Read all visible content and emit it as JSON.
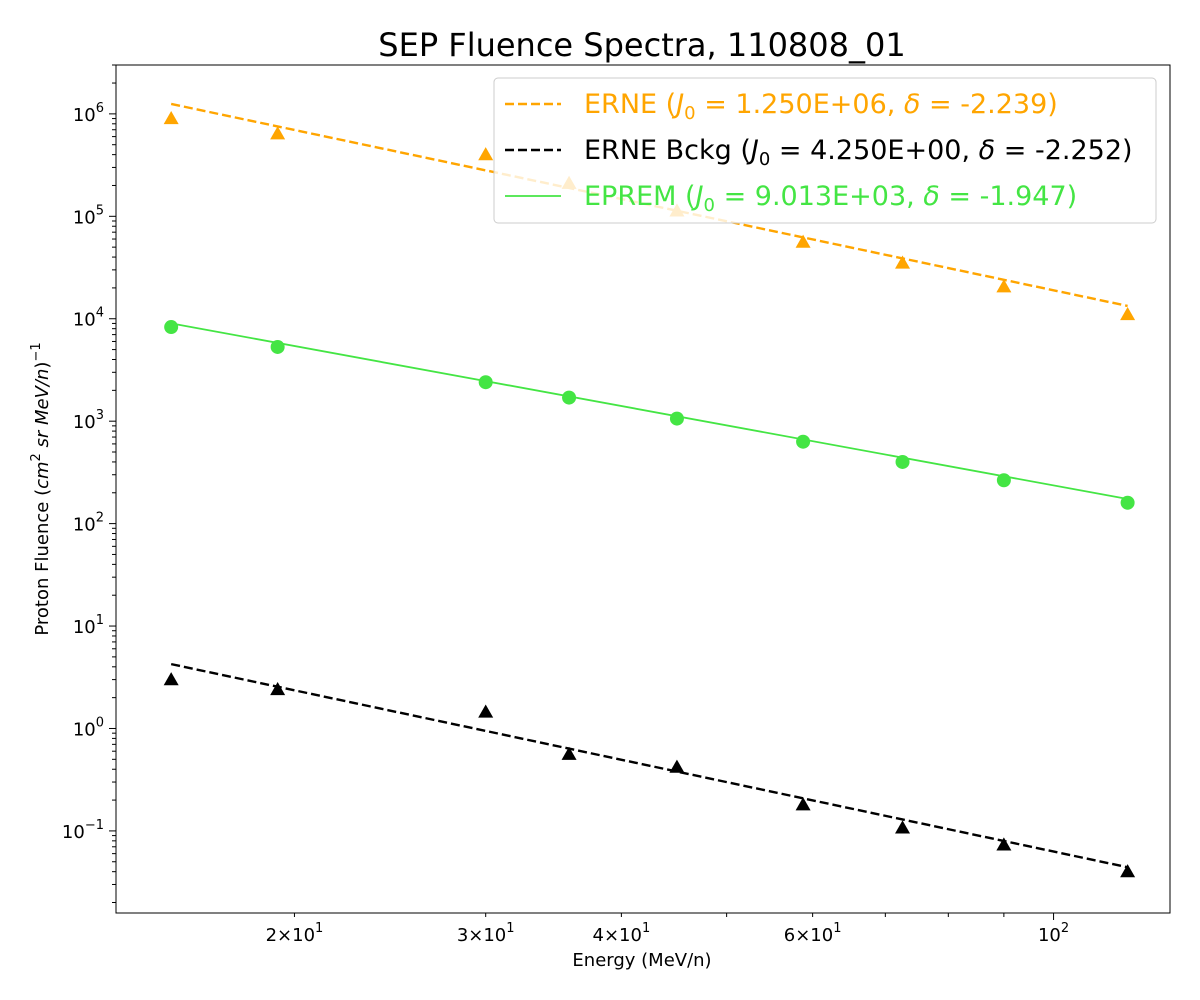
{
  "chart_data": {
    "type": "scatter",
    "title": "SEP Fluence Spectra, 110808_01",
    "xlabel": "Energy (MeV/n)",
    "ylabel": "Proton Fluence (cm² sr MeV/n)⁻¹",
    "xscale": "log",
    "yscale": "log",
    "xlim": [
      13.7,
      128
    ],
    "ylim": [
      0.0158,
      3000000
    ],
    "grid": false,
    "legend_placement": "upper-right",
    "x_ticks": [
      {
        "value": 20,
        "mantissa": "2",
        "exponent": "1"
      },
      {
        "value": 30,
        "mantissa": "3",
        "exponent": "1"
      },
      {
        "value": 40,
        "mantissa": "4",
        "exponent": "1"
      },
      {
        "value": 60,
        "mantissa": "6",
        "exponent": "1"
      },
      {
        "value": 100,
        "mantissa": "",
        "exponent": "2"
      }
    ],
    "y_ticks": [
      {
        "value": 0.1,
        "exponent": "−1"
      },
      {
        "value": 1,
        "exponent": "0"
      },
      {
        "value": 10,
        "exponent": "1"
      },
      {
        "value": 100,
        "exponent": "2"
      },
      {
        "value": 1000,
        "exponent": "3"
      },
      {
        "value": 10000,
        "exponent": "4"
      },
      {
        "value": 100000,
        "exponent": "5"
      },
      {
        "value": 1000000,
        "exponent": "6"
      }
    ],
    "energies": [
      15.4,
      19.3,
      30.0,
      35.8,
      45.0,
      58.8,
      72.6,
      90.0,
      117.0
    ],
    "series": [
      {
        "name": "ERNE",
        "legend_j0": "1.250E+06",
        "legend_delta": "-2.239",
        "color": "#ffa500",
        "marker": "triangle",
        "values": [
          900000,
          640000,
          400000,
          210000,
          113000,
          56000,
          35000,
          20500,
          11000
        ],
        "fit": {
          "j0": 1250000,
          "delta": -2.239,
          "style": "dashed"
        }
      },
      {
        "name": "ERNE Bckg",
        "legend_j0": "4.250E+00",
        "legend_delta": "-2.252",
        "color": "#000000",
        "marker": "triangle",
        "values": [
          3.0,
          2.4,
          1.45,
          0.56,
          0.42,
          0.18,
          0.107,
          0.073,
          0.04
        ],
        "fit": {
          "j0": 4.25,
          "delta": -2.252,
          "style": "dashed"
        }
      },
      {
        "name": "EPREM",
        "legend_j0": "9.013E+03",
        "legend_delta": "-1.947",
        "color": "#44e544",
        "marker": "circle",
        "values": [
          8300,
          5300,
          2400,
          1700,
          1060,
          630,
          400,
          265,
          160
        ],
        "fit": {
          "j0": 9013,
          "delta": -1.947,
          "style": "solid"
        }
      }
    ]
  }
}
